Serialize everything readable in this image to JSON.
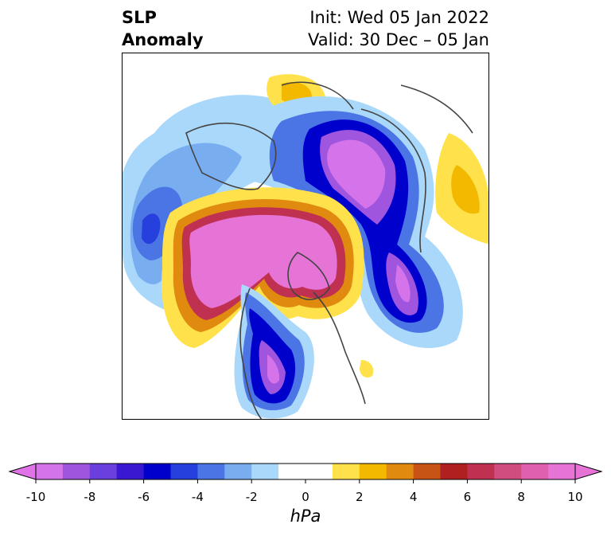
{
  "title": {
    "left_line1": "SLP",
    "left_line2": "Anomaly",
    "right_line1": "Init: Wed 05 Jan 2022",
    "right_line2": "Valid: 30 Dec – 05 Jan"
  },
  "colorbar": {
    "unit": "hPa",
    "ticks": [
      "-10",
      "-8",
      "-6",
      "-4",
      "-2",
      "0",
      "2",
      "4",
      "6",
      "8",
      "10"
    ],
    "colors": [
      "#d473ea",
      "#9f55de",
      "#6a3fdd",
      "#3a18d2",
      "#0000cd",
      "#2540dd",
      "#4b74e5",
      "#78aef0",
      "#a9d8fa",
      "#ffffff",
      "#ffffff",
      "#ffe24b",
      "#f2b900",
      "#e08a10",
      "#c75315",
      "#b02020",
      "#c03050",
      "#d04d80",
      "#df60ae",
      "#e574d6"
    ],
    "under_color": "#e074e6",
    "over_color": "#e574d6"
  },
  "map": {
    "projection": "north-polar-stereographic",
    "colors": {
      "strong_positive": "#e574d6",
      "strong_negative": "#0000cd",
      "weak_positive": "#ffe24b",
      "weak_negative": "#a9d8fa"
    }
  }
}
